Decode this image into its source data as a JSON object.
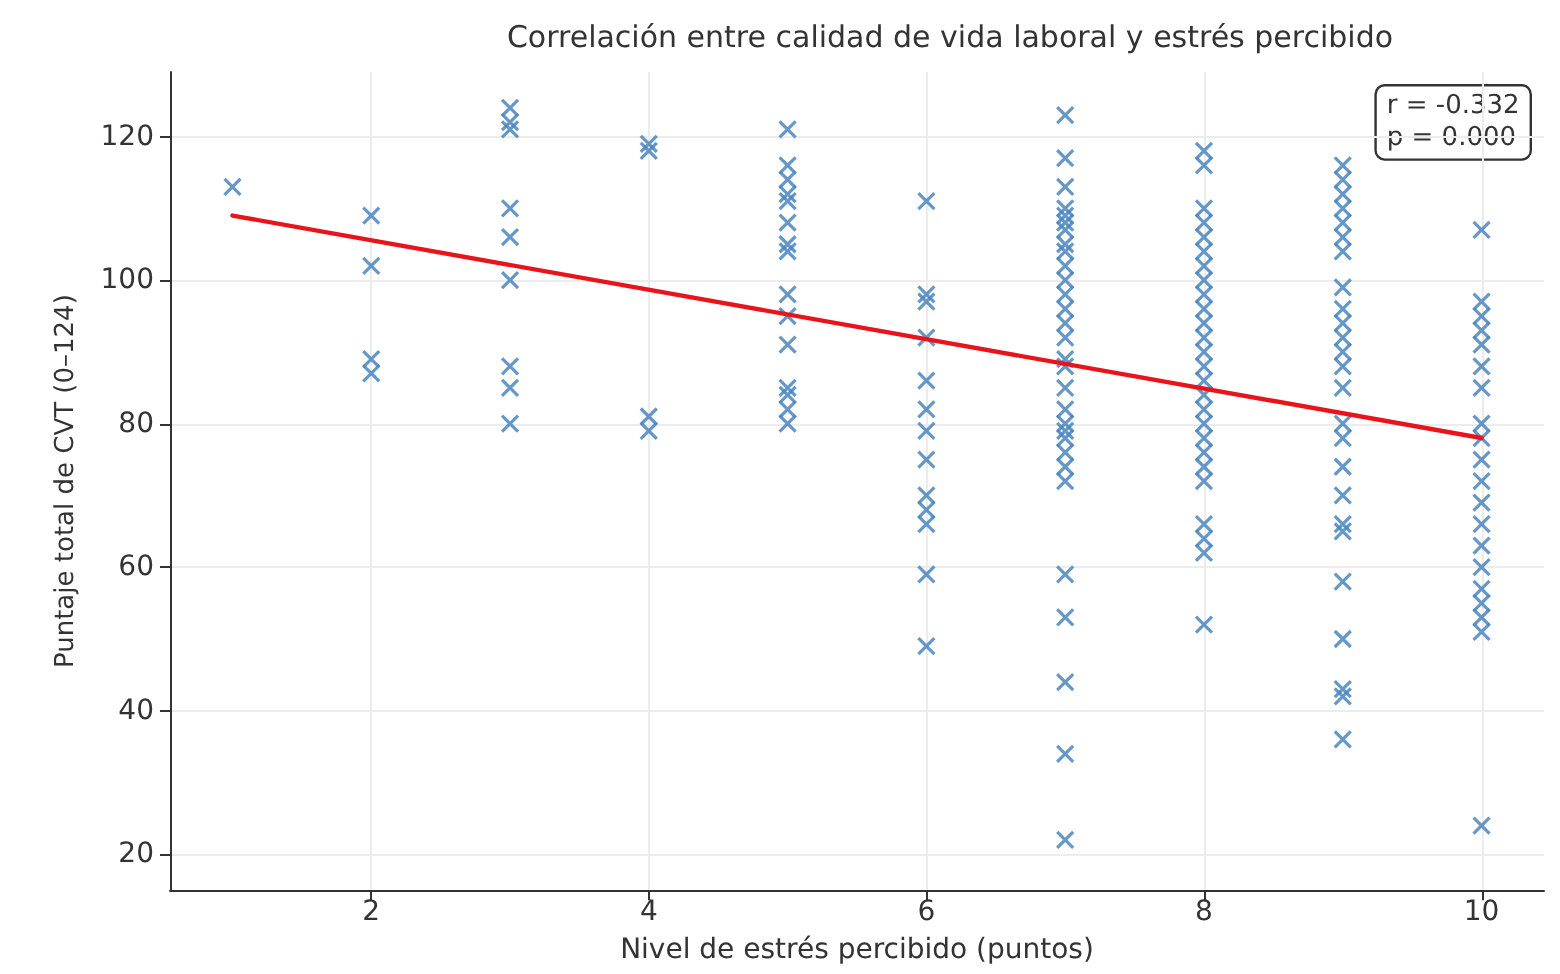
{
  "chart_data": {
    "type": "scatter",
    "title": "Correlación entre calidad de vida laboral y estrés percibido",
    "xlabel": "Nivel de estrés percibido (puntos)",
    "ylabel": "Puntaje total de CVT (0–124)",
    "annotations": [
      "r = -0.332",
      "p = 0.000"
    ],
    "series": [
      {
        "marker": "cross",
        "color": "#4a86c0",
        "x": [
          1,
          2,
          2,
          2,
          2,
          3,
          3,
          3,
          3,
          3,
          3,
          3,
          3,
          3,
          4,
          4,
          4,
          4,
          5,
          5,
          5,
          5,
          5,
          5,
          5,
          5,
          5,
          5,
          5,
          5,
          5,
          5,
          5,
          6,
          6,
          6,
          6,
          6,
          6,
          6,
          6,
          6,
          6,
          6,
          6,
          6,
          7,
          7,
          7,
          7,
          7,
          7,
          7,
          7,
          7,
          7,
          7,
          7,
          7,
          7,
          7,
          7,
          7,
          7,
          7,
          7,
          7,
          7,
          7,
          7,
          7,
          7,
          7,
          7,
          7,
          7,
          8,
          8,
          8,
          8,
          8,
          8,
          8,
          8,
          8,
          8,
          8,
          8,
          8,
          8,
          8,
          8,
          8,
          8,
          8,
          8,
          8,
          8,
          8,
          8,
          8,
          8,
          9,
          9,
          9,
          9,
          9,
          9,
          9,
          9,
          9,
          9,
          9,
          9,
          9,
          9,
          9,
          9,
          9,
          9,
          9,
          9,
          9,
          9,
          9,
          9,
          9,
          10,
          10,
          10,
          10,
          10,
          10,
          10,
          10,
          10,
          10,
          10,
          10,
          10,
          10,
          10,
          10,
          10,
          10,
          10,
          10
        ],
        "values": [
          113,
          109,
          102,
          89,
          87,
          124,
          122,
          121,
          110,
          106,
          100,
          88,
          85,
          80,
          119,
          118,
          81,
          79,
          121,
          116,
          114,
          112,
          111,
          108,
          105,
          104,
          98,
          95,
          91,
          85,
          84,
          82,
          80,
          111,
          98,
          97,
          92,
          86,
          82,
          79,
          75,
          70,
          68,
          66,
          59,
          49,
          123,
          117,
          113,
          110,
          109,
          108,
          107,
          105,
          104,
          102,
          100,
          98,
          96,
          94,
          92,
          89,
          88,
          85,
          82,
          80,
          79,
          78,
          76,
          74,
          72,
          59,
          53,
          44,
          34,
          22,
          118,
          116,
          110,
          108,
          106,
          104,
          102,
          100,
          98,
          96,
          94,
          92,
          90,
          88,
          86,
          84,
          82,
          80,
          78,
          76,
          74,
          72,
          66,
          64,
          62,
          52,
          116,
          114,
          112,
          110,
          108,
          106,
          104,
          99,
          96,
          94,
          92,
          90,
          88,
          85,
          80,
          78,
          74,
          70,
          66,
          65,
          58,
          50,
          43,
          42,
          36,
          107,
          97,
          95,
          93,
          91,
          88,
          85,
          80,
          78,
          75,
          72,
          69,
          66,
          63,
          60,
          57,
          55,
          53,
          51,
          24
        ]
      },
      {
        "type": "line",
        "color": "#e8141c",
        "x": [
          1,
          10
        ],
        "values": [
          109,
          78
        ]
      }
    ],
    "xlim": [
      0.55,
      10.45
    ],
    "ylim": [
      15,
      129
    ],
    "xticks": [
      2,
      4,
      6,
      8,
      10
    ],
    "yticks": [
      20,
      40,
      60,
      80,
      100,
      120
    ],
    "grid": true,
    "line_style": "solid"
  }
}
